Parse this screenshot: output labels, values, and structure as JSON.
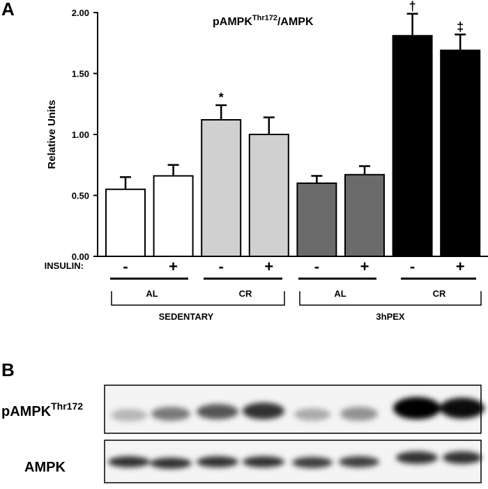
{
  "panel_a": "A",
  "panel_b": "B",
  "chart_data": {
    "type": "bar",
    "title": "pAMPK",
    "title_superscript": "Thr172",
    "title_suffix": "/AMPK",
    "ylabel": "Relative  Units",
    "category_label": "INSULIN:",
    "categories": [
      "-",
      "+",
      "-",
      "+",
      "-",
      "+",
      "-",
      "+"
    ],
    "values": [
      0.55,
      0.66,
      1.12,
      1.0,
      0.6,
      0.67,
      1.81,
      1.69
    ],
    "errors": [
      0.1,
      0.09,
      0.12,
      0.14,
      0.06,
      0.07,
      0.18,
      0.13
    ],
    "value_annotations": [
      null,
      null,
      "*",
      null,
      null,
      null,
      "†",
      "‡"
    ],
    "colors": [
      "#ffffff",
      "#ffffff",
      "#d0d0d0",
      "#d0d0d0",
      "#6b6b6b",
      "#6b6b6b",
      "#000000",
      "#000000"
    ],
    "groups": [
      "AL",
      "CR",
      "AL",
      "CR"
    ],
    "supergroups": [
      "SEDENTARY",
      "3hPEX"
    ],
    "ylim": [
      0,
      2
    ],
    "yticks": [
      {
        "value": 0,
        "label": "0.00"
      },
      {
        "value": 0.5,
        "label": "0.50"
      },
      {
        "value": 1,
        "label": "1.00"
      },
      {
        "value": 1.5,
        "label": "1.50"
      },
      {
        "value": 2,
        "label": "2.00"
      }
    ]
  },
  "blot": {
    "row_1_label": "pAMPK",
    "row_1_superscript": "Thr172",
    "row_2_label": "AMPK"
  }
}
